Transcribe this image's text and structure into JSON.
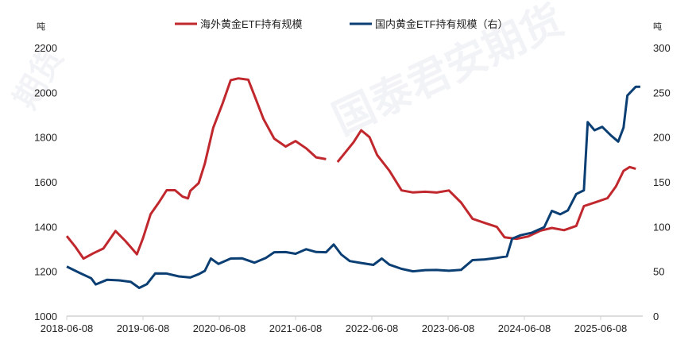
{
  "chart_data": {
    "type": "line",
    "title": "",
    "legend_position": "top",
    "left_axis": {
      "unit_label": "吨",
      "range": [
        1000,
        2200
      ],
      "ticks": [
        "1000",
        "1200",
        "1400",
        "1600",
        "1800",
        "2000",
        "2200"
      ]
    },
    "right_axis": {
      "unit_label": "吨",
      "range": [
        0,
        300
      ],
      "ticks": [
        "0",
        "50",
        "100",
        "150",
        "200",
        "250",
        "300"
      ]
    },
    "x_axis": {
      "range": [
        2018.44,
        2026.0
      ],
      "ticks": [
        {
          "label": "2018-06-08",
          "x": 2018.44
        },
        {
          "label": "2019-06-08",
          "x": 2019.44
        },
        {
          "label": "2020-06-08",
          "x": 2020.44
        },
        {
          "label": "2021-06-08",
          "x": 2021.44
        },
        {
          "label": "2022-06-08",
          "x": 2022.44
        },
        {
          "label": "2023-06-08",
          "x": 2023.44
        },
        {
          "label": "2024-06-08",
          "x": 2024.44
        },
        {
          "label": "2025-06-08",
          "x": 2025.44
        }
      ]
    },
    "series": [
      {
        "name": "海外黄金ETF持有规模",
        "axis": "left",
        "color": "#c0282d",
        "points": [
          [
            2018.44,
            1358
          ],
          [
            2018.55,
            1312
          ],
          [
            2018.66,
            1259
          ],
          [
            2018.79,
            1284
          ],
          [
            2018.92,
            1305
          ],
          [
            2019.08,
            1383
          ],
          [
            2019.21,
            1337
          ],
          [
            2019.36,
            1277
          ],
          [
            2019.44,
            1348
          ],
          [
            2019.54,
            1454
          ],
          [
            2019.65,
            1507
          ],
          [
            2019.75,
            1560
          ],
          [
            2019.86,
            1560
          ],
          [
            2019.96,
            1532
          ],
          [
            2020.03,
            1525
          ],
          [
            2020.06,
            1560
          ],
          [
            2020.17,
            1596
          ],
          [
            2020.25,
            1684
          ],
          [
            2020.36,
            1844
          ],
          [
            2020.48,
            1950
          ],
          [
            2020.59,
            2057
          ],
          [
            2020.69,
            2064
          ],
          [
            2020.82,
            2057
          ],
          [
            2020.92,
            1968
          ],
          [
            2021.02,
            1879
          ],
          [
            2021.16,
            1791
          ],
          [
            2021.31,
            1755
          ],
          [
            2021.44,
            1780
          ],
          [
            2021.58,
            1748
          ],
          [
            2021.71,
            1709
          ],
          [
            2021.84,
            1702
          ],
          null,
          [
            2021.99,
            1691
          ],
          [
            2022.1,
            1738
          ],
          [
            2022.2,
            1780
          ],
          [
            2022.3,
            1833
          ],
          [
            2022.41,
            1801
          ],
          [
            2022.51,
            1720
          ],
          [
            2022.67,
            1649
          ],
          [
            2022.83,
            1560
          ],
          [
            2022.98,
            1550
          ],
          [
            2023.14,
            1553
          ],
          [
            2023.29,
            1550
          ],
          [
            2023.45,
            1560
          ],
          [
            2023.61,
            1507
          ],
          [
            2023.76,
            1436
          ],
          [
            2023.92,
            1418
          ],
          [
            2024.08,
            1401
          ],
          [
            2024.18,
            1355
          ],
          [
            2024.34,
            1348
          ],
          [
            2024.49,
            1358
          ],
          [
            2024.65,
            1383
          ],
          [
            2024.8,
            1394
          ],
          [
            2024.96,
            1383
          ],
          [
            2025.12,
            1401
          ],
          [
            2025.22,
            1489
          ],
          [
            2025.38,
            1507
          ],
          [
            2025.53,
            1525
          ],
          [
            2025.64,
            1578
          ],
          [
            2025.74,
            1649
          ],
          [
            2025.82,
            1667
          ],
          [
            2025.9,
            1660
          ]
        ]
      },
      {
        "name": "国内黄金ETF持有规模（右）",
        "axis": "right",
        "color": "#0b3f74",
        "points": [
          [
            2018.44,
            56
          ],
          [
            2018.61,
            49
          ],
          [
            2018.76,
            43
          ],
          [
            2018.82,
            36
          ],
          [
            2018.97,
            41
          ],
          [
            2019.13,
            40
          ],
          [
            2019.28,
            38
          ],
          [
            2019.39,
            31
          ],
          [
            2019.49,
            35
          ],
          [
            2019.6,
            47
          ],
          [
            2019.75,
            47
          ],
          [
            2019.91,
            44
          ],
          [
            2020.06,
            43
          ],
          [
            2020.17,
            47
          ],
          [
            2020.25,
            51
          ],
          [
            2020.33,
            65
          ],
          [
            2020.43,
            59
          ],
          [
            2020.59,
            65
          ],
          [
            2020.74,
            65
          ],
          [
            2020.9,
            60
          ],
          [
            2021.05,
            65
          ],
          [
            2021.16,
            71
          ],
          [
            2021.31,
            71
          ],
          [
            2021.44,
            69
          ],
          [
            2021.58,
            74
          ],
          [
            2021.71,
            71
          ],
          [
            2021.84,
            71
          ],
          [
            2021.94,
            80
          ],
          [
            2022.04,
            69
          ],
          [
            2022.15,
            62
          ],
          [
            2022.3,
            60
          ],
          [
            2022.46,
            58
          ],
          [
            2022.57,
            65
          ],
          [
            2022.67,
            58
          ],
          [
            2022.83,
            53
          ],
          [
            2022.98,
            50
          ],
          [
            2023.14,
            51
          ],
          [
            2023.29,
            51
          ],
          [
            2023.45,
            50
          ],
          [
            2023.61,
            51
          ],
          [
            2023.76,
            62
          ],
          [
            2023.92,
            63
          ],
          [
            2024.08,
            65
          ],
          [
            2024.21,
            67
          ],
          [
            2024.28,
            87
          ],
          [
            2024.39,
            91
          ],
          [
            2024.54,
            94
          ],
          [
            2024.7,
            100
          ],
          [
            2024.8,
            118
          ],
          [
            2024.91,
            114
          ],
          [
            2025.01,
            118
          ],
          [
            2025.12,
            136
          ],
          [
            2025.22,
            140
          ],
          [
            2025.27,
            216
          ],
          [
            2025.36,
            207
          ],
          [
            2025.46,
            211
          ],
          [
            2025.57,
            202
          ],
          [
            2025.67,
            195
          ],
          [
            2025.74,
            211
          ],
          [
            2025.79,
            247
          ],
          [
            2025.9,
            257
          ],
          [
            2025.96,
            257
          ]
        ]
      }
    ]
  },
  "watermark": "国泰君安期货 GUOTAI JUNAN FUTURES"
}
